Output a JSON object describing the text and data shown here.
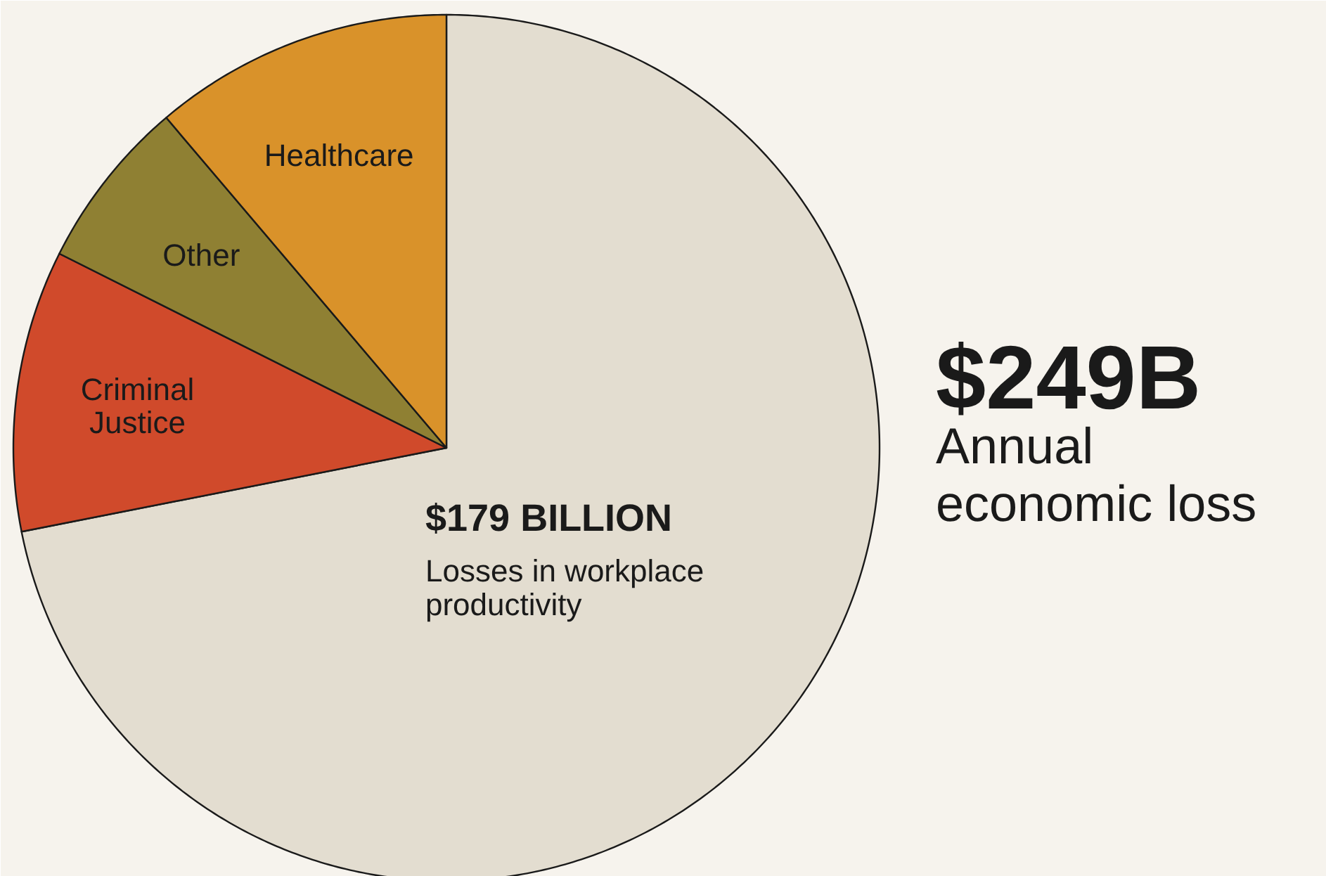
{
  "chart_data": {
    "type": "pie",
    "title": "$249B",
    "subtitle": "Annual economic loss",
    "categories": [
      "Losses in workplace productivity",
      "Criminal Justice",
      "Other",
      "Healthcare"
    ],
    "values": [
      71.9,
      10.5,
      6.4,
      11.2
    ],
    "colors": [
      "#e3ddd0",
      "#d04a2b",
      "#8f8033",
      "#d9922a"
    ],
    "annotations": [
      "$179 BILLION"
    ]
  }
}
